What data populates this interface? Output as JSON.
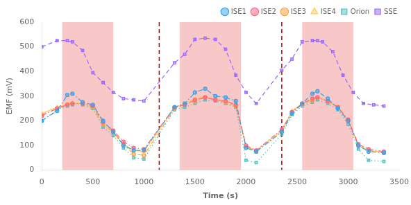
{
  "chart_data": {
    "type": "line",
    "xlabel": "Time (s)",
    "ylabel": "EMF (mV)",
    "xlim": [
      0,
      3500
    ],
    "ylim": [
      0,
      600
    ],
    "xticks": [
      0,
      500,
      1000,
      1500,
      2000,
      2500,
      3000,
      3500
    ],
    "yticks": [
      0,
      100,
      200,
      300,
      400,
      500,
      600
    ],
    "grid": false,
    "legend": "upper right",
    "shaded_regions": {
      "ranges": [
        [
          200,
          700
        ],
        [
          1350,
          1950
        ],
        [
          2550,
          3050
        ]
      ],
      "color": "#F5AAAA"
    },
    "vlines": {
      "x": [
        1150,
        2350
      ],
      "color": "#CC0000",
      "line_style": "dashed"
    },
    "series": [
      {
        "name": "ISE1",
        "marker": "circle",
        "line_style": "dashdot",
        "x": [
          0,
          150,
          250,
          300,
          400,
          500,
          600,
          700,
          800,
          900,
          1000,
          1300,
          1400,
          1500,
          1600,
          1700,
          1800,
          1900,
          2000,
          2100,
          2350,
          2450,
          2550,
          2650,
          2700,
          2800,
          2900,
          3000,
          3100,
          3200,
          3350
        ],
        "values": [
          200,
          240,
          305,
          310,
          275,
          265,
          200,
          155,
          100,
          80,
          80,
          255,
          270,
          315,
          330,
          300,
          295,
          280,
          90,
          75,
          155,
          230,
          270,
          310,
          320,
          290,
          250,
          200,
          100,
          75,
          70
        ]
      },
      {
        "name": "ISE2",
        "marker": "circle",
        "line_style": "dashdot",
        "x": [
          0,
          150,
          250,
          300,
          400,
          500,
          600,
          700,
          800,
          900,
          1000,
          1300,
          1400,
          1500,
          1600,
          1700,
          1800,
          1900,
          2000,
          2100,
          2350,
          2450,
          2550,
          2650,
          2700,
          2800,
          2900,
          3000,
          3100,
          3200,
          3350
        ],
        "values": [
          220,
          250,
          265,
          270,
          270,
          260,
          195,
          160,
          115,
          90,
          85,
          255,
          265,
          285,
          295,
          285,
          280,
          265,
          100,
          80,
          165,
          235,
          270,
          290,
          295,
          280,
          255,
          205,
          105,
          85,
          75
        ]
      },
      {
        "name": "ISE3",
        "marker": "circle",
        "line_style": "dashdot",
        "x": [
          0,
          150,
          250,
          300,
          400,
          500,
          600,
          700,
          800,
          900,
          1000,
          1300,
          1400,
          1500,
          1600,
          1700,
          1800,
          1900,
          2000,
          2100,
          2350,
          2450,
          2550,
          2650,
          2700,
          2800,
          2900,
          3000,
          3100,
          3200,
          3350
        ],
        "values": [
          225,
          250,
          265,
          270,
          270,
          255,
          185,
          155,
          105,
          65,
          60,
          250,
          265,
          280,
          295,
          285,
          275,
          260,
          95,
          75,
          155,
          235,
          265,
          285,
          295,
          278,
          255,
          200,
          100,
          80,
          70
        ]
      },
      {
        "name": "ISE4",
        "marker": "triangle",
        "line_style": "solid",
        "x": [
          0,
          150,
          250,
          300,
          400,
          500,
          600,
          700,
          800,
          900,
          1000,
          1300,
          1400,
          1500,
          1600,
          1700,
          1800,
          1900,
          2000,
          2100,
          2350,
          2450,
          2550,
          2650,
          2700,
          2800,
          2900,
          3000,
          3100,
          3200,
          3350
        ],
        "values": [
          230,
          255,
          270,
          275,
          270,
          255,
          190,
          150,
          105,
          80,
          75,
          255,
          270,
          290,
          300,
          285,
          280,
          265,
          95,
          80,
          160,
          240,
          270,
          290,
          295,
          280,
          258,
          200,
          100,
          80,
          72
        ]
      },
      {
        "name": "Orion",
        "marker": "square",
        "line_style": "dotted",
        "x": [
          0,
          150,
          250,
          300,
          400,
          500,
          600,
          700,
          800,
          900,
          1000,
          1300,
          1400,
          1500,
          1600,
          1700,
          1800,
          1900,
          2000,
          2100,
          2350,
          2450,
          2550,
          2650,
          2700,
          2800,
          2900,
          3000,
          3100,
          3200,
          3350
        ],
        "values": [
          200,
          245,
          260,
          265,
          265,
          250,
          175,
          140,
          90,
          50,
          45,
          245,
          255,
          270,
          285,
          280,
          270,
          255,
          40,
          30,
          145,
          225,
          260,
          275,
          285,
          270,
          245,
          185,
          85,
          40,
          35
        ]
      },
      {
        "name": "SSE",
        "marker": "square",
        "line_style": "dashed",
        "x": [
          0,
          150,
          250,
          300,
          400,
          500,
          600,
          700,
          800,
          900,
          1000,
          1300,
          1400,
          1500,
          1600,
          1700,
          1800,
          1900,
          2000,
          2100,
          2350,
          2450,
          2550,
          2650,
          2700,
          2750,
          2850,
          2950,
          3050,
          3150,
          3250,
          3350
        ],
        "values": [
          500,
          525,
          525,
          520,
          485,
          395,
          355,
          315,
          290,
          285,
          280,
          435,
          470,
          530,
          535,
          530,
          490,
          385,
          315,
          270,
          405,
          450,
          520,
          525,
          525,
          520,
          480,
          385,
          315,
          270,
          265,
          260
        ]
      }
    ]
  }
}
